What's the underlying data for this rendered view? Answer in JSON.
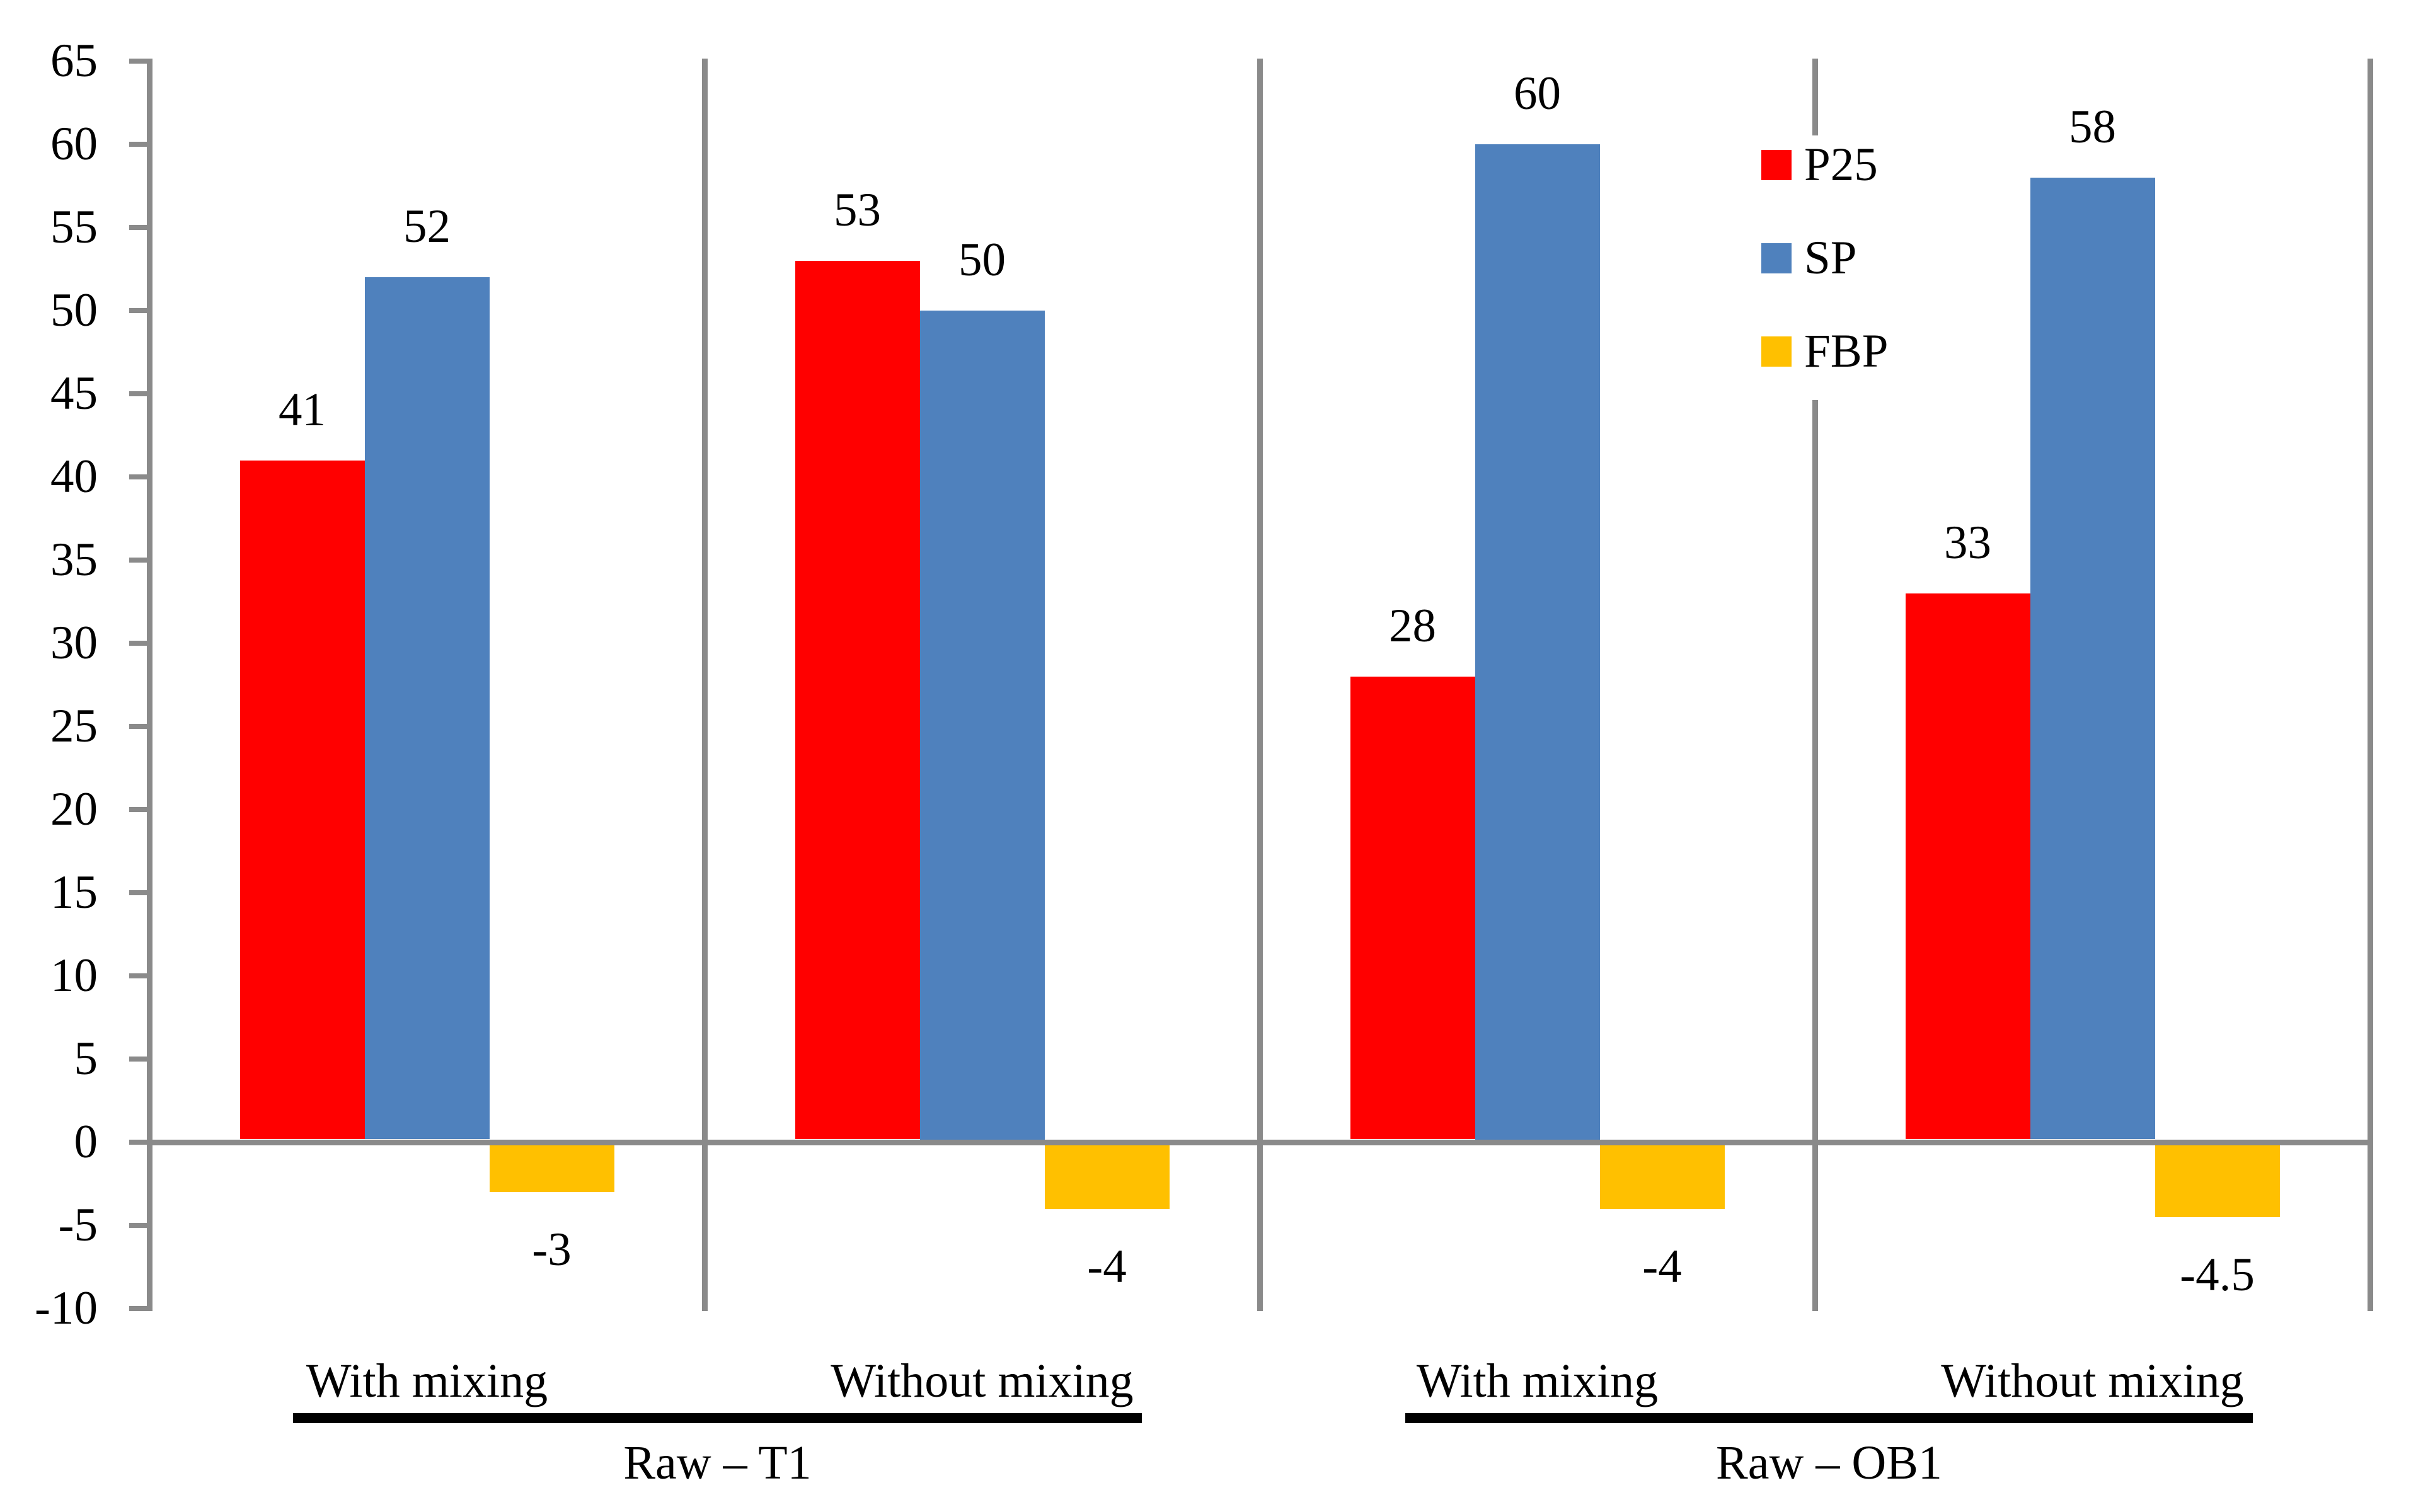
{
  "chart_data": {
    "type": "bar",
    "title": "",
    "y_axis": {
      "min": -10,
      "max": 65,
      "step": 5,
      "tick_labels": [
        "65",
        "60",
        "55",
        "50",
        "45",
        "40",
        "35",
        "30",
        "25",
        "20",
        "15",
        "10",
        "5",
        "0",
        "-5",
        "-10"
      ]
    },
    "categories": [
      "With mixing",
      "Without mixing",
      "With mixing",
      "Without mixing"
    ],
    "group_labels": [
      {
        "label": "Raw – T1"
      },
      {
        "label": "Raw – OB1"
      }
    ],
    "series": [
      {
        "name": "P25",
        "color": "#FF0000",
        "values": [
          41,
          53,
          28,
          33
        ],
        "labels": [
          "41",
          "53",
          "28",
          "33"
        ]
      },
      {
        "name": "SP",
        "color": "#4F81BD",
        "values": [
          52,
          50,
          60,
          58
        ],
        "labels": [
          "52",
          "50",
          "60",
          "58"
        ]
      },
      {
        "name": "FBP",
        "color": "#FFC000",
        "values": [
          -3,
          -4,
          -4,
          -4.5
        ],
        "labels": [
          "-3",
          "-4",
          "-4",
          "-4.5"
        ]
      }
    ],
    "legend": {
      "position": "top-right",
      "entries": [
        "P25",
        "SP",
        "FBP"
      ]
    },
    "grid": false,
    "axis_color": "#8A8A8A",
    "text_color": "#000000",
    "background_color": "#FFFFFF"
  }
}
